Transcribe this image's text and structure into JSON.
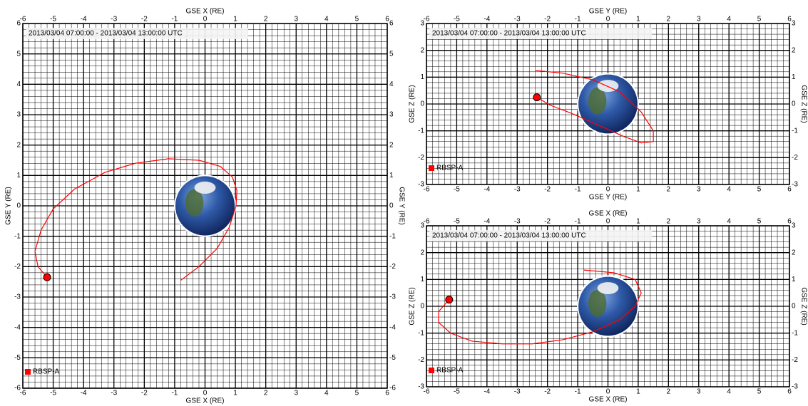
{
  "chart_data": [
    {
      "type": "line",
      "title": "2013/03/04 07:00:00 - 2013/03/04 13:00:00 UTC",
      "xlabel": "GSE X (RE)",
      "ylabel": "GSE Y (RE)",
      "xlim": [
        -6,
        6
      ],
      "ylim": [
        -6,
        6
      ],
      "xticks": [
        -6,
        -5,
        -4,
        -3,
        -2,
        -1,
        0,
        1,
        2,
        3,
        4,
        5,
        6
      ],
      "yticks": [
        -6,
        -5,
        -4,
        -3,
        -2,
        -1,
        0,
        1,
        2,
        3,
        4,
        5,
        6
      ],
      "minor_divisions": 5,
      "series": [
        {
          "name": "RBSP-A",
          "color": "#ff0000",
          "x": [
            -0.8,
            -0.2,
            0.4,
            0.8,
            1.02,
            1.05,
            0.9,
            0.5,
            -0.2,
            -1.2,
            -2.3,
            -3.3,
            -4.3,
            -5.0,
            -5.4,
            -5.6,
            -5.5,
            -5.2
          ],
          "values": [
            -2.45,
            -2.0,
            -1.4,
            -0.7,
            0.0,
            0.5,
            0.95,
            1.3,
            1.5,
            1.55,
            1.4,
            1.1,
            0.55,
            -0.1,
            -0.8,
            -1.5,
            -2.0,
            -2.35
          ]
        }
      ]
    },
    {
      "type": "line",
      "title": "2013/03/04 07:00:00 - 2013/03/04 13:00:00 UTC",
      "xlabel": "GSE Y (RE)",
      "ylabel": "GSE Z (RE)",
      "xlim": [
        -6,
        6
      ],
      "ylim": [
        -3,
        3
      ],
      "xticks": [
        -6,
        -5,
        -4,
        -3,
        -2,
        -1,
        0,
        1,
        2,
        3,
        4,
        5,
        6
      ],
      "yticks": [
        -3,
        -2,
        -1,
        0,
        1,
        2,
        3
      ],
      "minor_divisions": 5,
      "series": [
        {
          "name": "RBSP-A",
          "color": "#ff0000",
          "x": [
            -2.4,
            -1.5,
            -0.5,
            0.4,
            1.1,
            1.5,
            1.5,
            1.1,
            0.5,
            -0.3,
            -1.2,
            -1.9,
            -2.35
          ],
          "values": [
            1.25,
            1.15,
            0.9,
            0.45,
            -0.3,
            -1.0,
            -1.4,
            -1.45,
            -1.2,
            -0.8,
            -0.35,
            -0.05,
            0.25
          ]
        }
      ]
    },
    {
      "type": "line",
      "title": "2013/03/04 07:00:00 - 2013/03/04 13:00:00 UTC",
      "xlabel": "GSE X (RE)",
      "ylabel": "GSE Z (RE)",
      "xlim": [
        -6,
        6
      ],
      "ylim": [
        -3,
        3
      ],
      "xticks": [
        -6,
        -5,
        -4,
        -3,
        -2,
        -1,
        0,
        1,
        2,
        3,
        4,
        5,
        6
      ],
      "yticks": [
        -3,
        -2,
        -1,
        0,
        1,
        2,
        3
      ],
      "minor_divisions": 5,
      "series": [
        {
          "name": "RBSP-A",
          "color": "#ff0000",
          "x": [
            -0.8,
            0.2,
            0.9,
            1.1,
            0.9,
            0.4,
            -0.5,
            -1.5,
            -2.5,
            -3.5,
            -4.5,
            -5.2,
            -5.6,
            -5.6,
            -5.25
          ],
          "values": [
            1.35,
            1.25,
            1.0,
            0.5,
            0.0,
            -0.5,
            -0.95,
            -1.25,
            -1.4,
            -1.4,
            -1.3,
            -1.0,
            -0.6,
            -0.2,
            0.25
          ]
        }
      ]
    }
  ]
}
